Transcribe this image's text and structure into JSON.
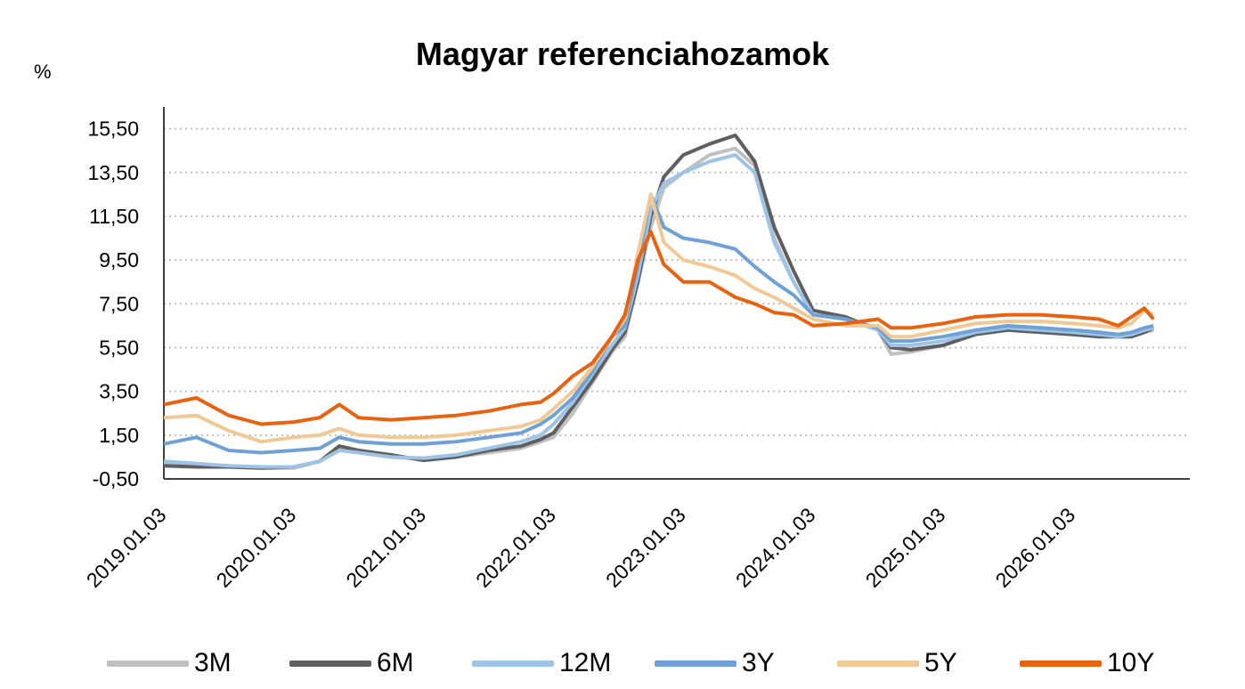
{
  "chart_data": {
    "type": "line",
    "title": "Magyar referenciahozamok",
    "ylabel": "%",
    "xlabel": "",
    "ylim": [
      -0.5,
      16.5
    ],
    "yticks": [
      "-0,50",
      "1,50",
      "3,50",
      "5,50",
      "7,50",
      "9,50",
      "11,50",
      "13,50",
      "15,50"
    ],
    "ytick_values": [
      -0.5,
      1.5,
      3.5,
      5.5,
      7.5,
      9.5,
      11.5,
      13.5,
      15.5
    ],
    "xlim": [
      2019.0,
      2026.9
    ],
    "xticks": [
      "2019.01.03",
      "2020.01.03",
      "2021.01.03",
      "2022.01.03",
      "2023.01.03",
      "2024.01.03",
      "2025.01.03",
      "2026.01.03"
    ],
    "xtick_values": [
      2019.0,
      2020.0,
      2021.0,
      2022.0,
      2023.0,
      2024.0,
      2025.0,
      2026.0
    ],
    "grid": "horizontal dotted",
    "legend": "bottom",
    "x": [
      2019.0,
      2019.25,
      2019.5,
      2019.75,
      2020.0,
      2020.2,
      2020.35,
      2020.5,
      2020.75,
      2021.0,
      2021.25,
      2021.5,
      2021.75,
      2021.9,
      2022.0,
      2022.15,
      2022.3,
      2022.45,
      2022.55,
      2022.65,
      2022.75,
      2022.85,
      2023.0,
      2023.2,
      2023.4,
      2023.55,
      2023.7,
      2023.85,
      2024.0,
      2024.25,
      2024.5,
      2024.6,
      2024.75,
      2025.0,
      2025.25,
      2025.5,
      2025.75,
      2026.0,
      2026.2,
      2026.35,
      2026.45,
      2026.55,
      2026.62
    ],
    "series": [
      {
        "name": "3M",
        "color": "#c0c0c0",
        "values": [
          0.2,
          0.1,
          0.05,
          0.0,
          0.0,
          0.3,
          0.9,
          0.7,
          0.5,
          0.4,
          0.5,
          0.7,
          0.9,
          1.2,
          1.4,
          2.5,
          3.9,
          5.3,
          6.0,
          8.5,
          11.0,
          12.8,
          13.5,
          14.3,
          14.6,
          13.8,
          10.5,
          8.5,
          7.0,
          6.8,
          6.3,
          5.2,
          5.3,
          5.6,
          6.1,
          6.3,
          6.2,
          6.1,
          6.05,
          6.0,
          6.0,
          6.2,
          6.3
        ]
      },
      {
        "name": "6M",
        "color": "#5f5f5f",
        "values": [
          0.1,
          0.05,
          0.05,
          0.0,
          0.05,
          0.3,
          1.0,
          0.8,
          0.6,
          0.35,
          0.5,
          0.8,
          1.0,
          1.3,
          1.6,
          2.8,
          4.0,
          5.4,
          6.2,
          8.5,
          11.5,
          13.3,
          14.3,
          14.8,
          15.2,
          14.0,
          11.0,
          9.0,
          7.2,
          6.9,
          6.3,
          5.5,
          5.4,
          5.6,
          6.1,
          6.3,
          6.2,
          6.1,
          6.0,
          6.0,
          6.0,
          6.2,
          6.4
        ]
      },
      {
        "name": "12M",
        "color": "#9dc3e6",
        "values": [
          0.3,
          0.2,
          0.1,
          0.05,
          0.05,
          0.3,
          0.8,
          0.7,
          0.5,
          0.45,
          0.6,
          0.9,
          1.2,
          1.5,
          2.0,
          3.0,
          4.3,
          5.6,
          6.4,
          8.8,
          11.8,
          13.0,
          13.5,
          14.0,
          14.3,
          13.5,
          10.3,
          8.5,
          7.0,
          6.8,
          6.3,
          5.6,
          5.6,
          5.8,
          6.2,
          6.4,
          6.3,
          6.2,
          6.1,
          6.0,
          6.1,
          6.3,
          6.4
        ]
      },
      {
        "name": "3Y",
        "color": "#6fa0d6",
        "values": [
          1.1,
          1.4,
          0.8,
          0.7,
          0.8,
          0.9,
          1.4,
          1.2,
          1.1,
          1.1,
          1.2,
          1.4,
          1.6,
          2.0,
          2.4,
          3.2,
          4.4,
          6.0,
          6.5,
          9.3,
          12.5,
          11.0,
          10.5,
          10.3,
          10.0,
          9.2,
          8.5,
          7.9,
          7.0,
          6.8,
          6.4,
          5.8,
          5.8,
          6.0,
          6.3,
          6.5,
          6.4,
          6.3,
          6.2,
          6.1,
          6.2,
          6.4,
          6.5
        ]
      },
      {
        "name": "5Y",
        "color": "#f0c995",
        "values": [
          2.3,
          2.4,
          1.7,
          1.2,
          1.4,
          1.5,
          1.8,
          1.5,
          1.4,
          1.4,
          1.5,
          1.7,
          1.9,
          2.2,
          2.7,
          3.5,
          4.6,
          6.0,
          6.8,
          9.8,
          12.5,
          10.3,
          9.5,
          9.2,
          8.8,
          8.2,
          7.8,
          7.3,
          6.8,
          6.5,
          6.5,
          6.0,
          6.0,
          6.3,
          6.6,
          6.7,
          6.7,
          6.6,
          6.5,
          6.4,
          6.6,
          7.2,
          7.0
        ]
      },
      {
        "name": "10Y",
        "color": "#e8620f",
        "values": [
          2.9,
          3.2,
          2.4,
          2.0,
          2.1,
          2.3,
          2.9,
          2.3,
          2.2,
          2.3,
          2.4,
          2.6,
          2.9,
          3.0,
          3.4,
          4.2,
          4.8,
          6.0,
          7.0,
          9.5,
          10.8,
          9.3,
          8.5,
          8.5,
          7.8,
          7.5,
          7.1,
          7.0,
          6.5,
          6.6,
          6.8,
          6.4,
          6.4,
          6.6,
          6.9,
          7.0,
          7.0,
          6.9,
          6.8,
          6.5,
          6.9,
          7.3,
          6.8
        ]
      }
    ]
  }
}
